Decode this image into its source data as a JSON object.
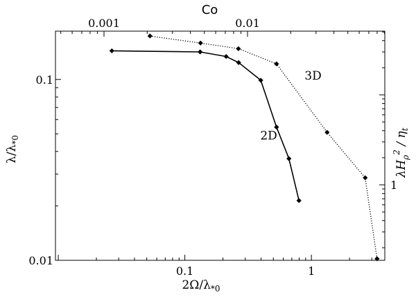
{
  "chart_data": {
    "type": "line",
    "scale": {
      "x": "log",
      "y": "log",
      "x_top": "log",
      "y_right": "log"
    },
    "xlim": [
      0.0095,
      3.8
    ],
    "ylim": [
      0.01,
      0.185
    ],
    "x_ticks": [
      {
        "value": 0.1,
        "label": "0.1"
      },
      {
        "value": 1,
        "label": "1"
      }
    ],
    "y_ticks": [
      {
        "value": 0.01,
        "label": "0.01"
      },
      {
        "value": 0.1,
        "label": "0.1"
      }
    ],
    "top_axis": {
      "label": "Co",
      "ticks": [
        {
          "value": 0.001,
          "label": "0.001"
        },
        {
          "value": 0.01,
          "label": "0.01"
        }
      ]
    },
    "right_axis": {
      "label_parts": [
        "λH",
        "ρ",
        "2",
        " / ",
        "η",
        "t"
      ],
      "ticks": [
        {
          "value": 1,
          "label": "1"
        }
      ]
    },
    "xlabel_parts": [
      "2Ω/λ",
      "*0"
    ],
    "ylabel_parts": [
      "λ/λ",
      "*0"
    ],
    "series": [
      {
        "name": "2D",
        "style": "solid",
        "x": [
          0.0265,
          0.132,
          0.212,
          0.266,
          0.398,
          0.53,
          0.664,
          0.797
        ],
        "y": [
          0.144,
          0.142,
          0.134,
          0.124,
          0.099,
          0.0545,
          0.0365,
          0.0214
        ]
      },
      {
        "name": "3D",
        "style": "dotted",
        "x": [
          0.053,
          0.133,
          0.265,
          0.53,
          1.33,
          2.66,
          3.3
        ],
        "y": [
          0.174,
          0.159,
          0.148,
          0.122,
          0.051,
          0.0286,
          0.0102
        ]
      }
    ],
    "annotations": [
      {
        "text": "2D",
        "x": 0.46,
        "y": 0.0465
      },
      {
        "text": "3D",
        "x": 1.03,
        "y": 0.1
      }
    ],
    "grid": false,
    "legend": "none"
  }
}
